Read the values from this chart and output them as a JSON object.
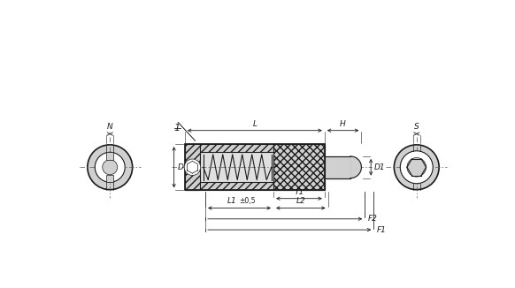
{
  "bg_color": "#ffffff",
  "lc": "#1a1a1a",
  "fill_gray": "#d0d0d0",
  "fill_white": "#ffffff",
  "fig_w": 5.82,
  "fig_h": 3.26,
  "dpi": 100,
  "labels": {
    "F1": "F1",
    "F2": "F2",
    "L1": "L1",
    "pm": "±0,5",
    "L2": "L2",
    "T1": "T1",
    "D": "D",
    "D1": "D1",
    "L": "L",
    "H": "H",
    "N": "N",
    "S": "S",
    "one": "1"
  }
}
